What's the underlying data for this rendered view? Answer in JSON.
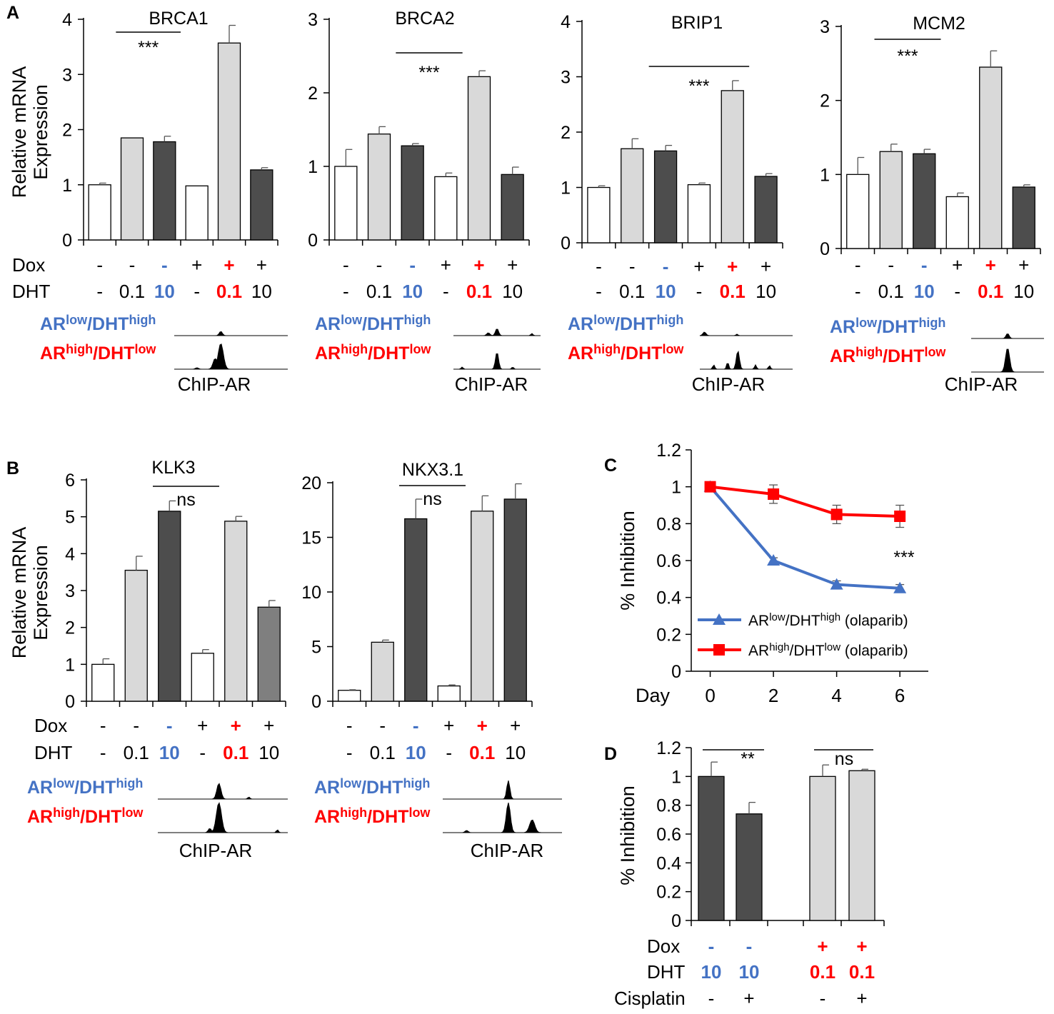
{
  "figure": {
    "panel_labels": [
      "A",
      "B",
      "C",
      "D"
    ],
    "ylabel_mrna_line1": "Relative mRNA",
    "ylabel_mrna_line2": "Expression",
    "ylabel_inhibition": "% Inhibition",
    "dox_label": "Dox",
    "dht_label": "DHT",
    "cisplatin_label": "Cisplatin",
    "chip_label": "ChIP-AR",
    "track_low": {
      "base": "AR",
      "sup1": "low",
      "mid": "/DHT",
      "sup2": "high"
    },
    "track_high": {
      "base": "AR",
      "sup1": "high",
      "mid": "/DHT",
      "sup2": "low"
    }
  },
  "colors": {
    "white_bar": "#ffffff",
    "light_bar": "#d9d9d9",
    "dark_bar": "#4d4d4d",
    "gray_bar": "#7f7f7f",
    "blue": "#4472c4",
    "red": "#ff0000",
    "black": "#000000"
  },
  "chart_data": [
    {
      "id": "brca1",
      "panel": "A",
      "type": "bar",
      "title": "BRCA1",
      "ylabel": "Relative mRNA Expression",
      "ylim": [
        0,
        4
      ],
      "yticks": [
        0,
        1,
        2,
        3,
        4
      ],
      "values": [
        1.0,
        1.85,
        1.78,
        0.98,
        3.57,
        1.27
      ],
      "errors": [
        0.03,
        0.0,
        0.1,
        0.0,
        0.32,
        0.04
      ],
      "fills": [
        "white",
        "light",
        "dark",
        "white",
        "light",
        "dark"
      ],
      "dox": [
        "-",
        "-",
        "-",
        "+",
        "+",
        "+"
      ],
      "dht": [
        "-",
        "0.1",
        "10",
        "-",
        "0.1",
        "10"
      ],
      "significance": {
        "label": "***",
        "from": 1,
        "to": 3
      }
    },
    {
      "id": "brca2",
      "panel": "A",
      "type": "bar",
      "title": "BRCA2",
      "ylabel": "Relative mRNA Expression",
      "ylim": [
        0,
        3
      ],
      "yticks": [
        0,
        1,
        2,
        3
      ],
      "values": [
        1.0,
        1.44,
        1.28,
        0.86,
        2.22,
        0.89
      ],
      "errors": [
        0.23,
        0.1,
        0.03,
        0.05,
        0.08,
        0.1
      ],
      "fills": [
        "white",
        "light",
        "dark",
        "white",
        "light",
        "dark"
      ],
      "dox": [
        "-",
        "-",
        "-",
        "+",
        "+",
        "+"
      ],
      "dht": [
        "-",
        "0.1",
        "10",
        "-",
        "0.1",
        "10"
      ],
      "significance": {
        "label": "***",
        "from": 2,
        "to": 4
      }
    },
    {
      "id": "brip1",
      "panel": "A",
      "type": "bar",
      "title": "BRIP1",
      "ylabel": "Relative mRNA Expression",
      "ylim": [
        0,
        4
      ],
      "yticks": [
        0,
        1,
        2,
        3,
        4
      ],
      "values": [
        1.0,
        1.7,
        1.66,
        1.05,
        2.75,
        1.2
      ],
      "errors": [
        0.03,
        0.18,
        0.1,
        0.03,
        0.18,
        0.05
      ],
      "fills": [
        "white",
        "light",
        "dark",
        "white",
        "light",
        "dark"
      ],
      "dox": [
        "-",
        "-",
        "-",
        "+",
        "+",
        "+"
      ],
      "dht": [
        "-",
        "0.1",
        "10",
        "-",
        "0.1",
        "10"
      ],
      "significance": {
        "label": "***",
        "from": 2,
        "to": 5
      }
    },
    {
      "id": "mcm2",
      "panel": "A",
      "type": "bar",
      "title": "MCM2",
      "ylabel": "Relative mRNA Expression",
      "ylim": [
        0,
        3
      ],
      "yticks": [
        0,
        1,
        2,
        3
      ],
      "values": [
        1.0,
        1.31,
        1.28,
        0.7,
        2.45,
        0.83
      ],
      "errors": [
        0.23,
        0.1,
        0.06,
        0.05,
        0.22,
        0.03
      ],
      "fills": [
        "white",
        "light",
        "dark",
        "white",
        "light",
        "dark"
      ],
      "dox": [
        "-",
        "-",
        "-",
        "+",
        "+",
        "+"
      ],
      "dht": [
        "-",
        "0.1",
        "10",
        "-",
        "0.1",
        "10"
      ],
      "significance": {
        "label": "***",
        "from": 1,
        "to": 3
      }
    },
    {
      "id": "klk3",
      "panel": "B",
      "type": "bar",
      "title": "KLK3",
      "ylabel": "Relative mRNA Expression",
      "ylim": [
        0,
        6
      ],
      "yticks": [
        0,
        1,
        2,
        3,
        4,
        5,
        6
      ],
      "values": [
        1.0,
        3.55,
        5.15,
        1.3,
        4.88,
        2.55
      ],
      "errors": [
        0.15,
        0.38,
        0.28,
        0.1,
        0.13,
        0.18
      ],
      "fills": [
        "white",
        "light",
        "dark",
        "white",
        "light",
        "gray"
      ],
      "dox": [
        "-",
        "-",
        "-",
        "+",
        "+",
        "+"
      ],
      "dht": [
        "-",
        "0.1",
        "10",
        "-",
        "0.1",
        "10"
      ],
      "significance": {
        "label": "ns",
        "from": 2,
        "to": 4
      }
    },
    {
      "id": "nkx31",
      "panel": "B",
      "type": "bar",
      "title": "NKX3.1",
      "ylabel": "Relative mRNA Expression",
      "ylim": [
        0,
        20
      ],
      "yticks": [
        0,
        5,
        10,
        15,
        20
      ],
      "values": [
        1.0,
        5.4,
        16.7,
        1.4,
        17.4,
        18.5
      ],
      "errors": [
        0.05,
        0.2,
        1.8,
        0.1,
        1.4,
        1.4
      ],
      "fills": [
        "white",
        "light",
        "dark",
        "white",
        "light",
        "dark"
      ],
      "dox": [
        "-",
        "-",
        "-",
        "+",
        "+",
        "+"
      ],
      "dht": [
        "-",
        "0.1",
        "10",
        "-",
        "0.1",
        "10"
      ],
      "significance": {
        "label": "ns",
        "from": 2,
        "to": 4
      }
    },
    {
      "id": "line_c",
      "panel": "C",
      "type": "line",
      "xlabel": "Day",
      "ylabel": "% Inhibition",
      "x": [
        0,
        2,
        4,
        6
      ],
      "xlim": [
        -0.6,
        6.9
      ],
      "ylim": [
        0,
        1.2
      ],
      "yticks": [
        0,
        0.2,
        0.4,
        0.6,
        0.8,
        1,
        1.2
      ],
      "series": [
        {
          "name": "ARlow/DHThigh (olaparib)",
          "base": "AR",
          "sup1": "low",
          "mid": "/DHT",
          "sup2": "high",
          "suffix": " (olaparib)",
          "color": "#4472c4",
          "marker": "triangle",
          "values": [
            1.0,
            0.6,
            0.47,
            0.45
          ],
          "errors": [
            0.0,
            0.015,
            0.02,
            0.02
          ]
        },
        {
          "name": "ARhigh/DHTlow (olaparib)",
          "base": "AR",
          "sup1": "high",
          "mid": "/DHT",
          "sup2": "low",
          "suffix": " (olaparib)",
          "color": "#ff0000",
          "marker": "square",
          "values": [
            1.0,
            0.96,
            0.85,
            0.84
          ],
          "errors": [
            0.0,
            0.05,
            0.05,
            0.06
          ]
        }
      ],
      "annotation": {
        "label": "***",
        "x": 6,
        "y": 0.68
      }
    },
    {
      "id": "bar_d",
      "panel": "D",
      "type": "bar",
      "ylabel": "% Inhibition",
      "ylim": [
        0,
        1.2
      ],
      "yticks": [
        0,
        0.2,
        0.4,
        0.6,
        0.8,
        1,
        1.2
      ],
      "values": [
        1.0,
        0.74,
        1.0,
        1.04
      ],
      "errors": [
        0.1,
        0.08,
        0.08,
        0.01
      ],
      "fills": [
        "dark",
        "dark",
        "light",
        "light"
      ],
      "dox": [
        "-",
        "-",
        "+",
        "+"
      ],
      "dht": [
        "10",
        "10",
        "0.1",
        "0.1"
      ],
      "cisplatin": [
        "-",
        "+",
        "-",
        "+"
      ],
      "significance": [
        {
          "label": "**",
          "from": 0,
          "to": 1
        },
        {
          "label": "ns",
          "from": 2,
          "to": 3
        }
      ]
    }
  ]
}
